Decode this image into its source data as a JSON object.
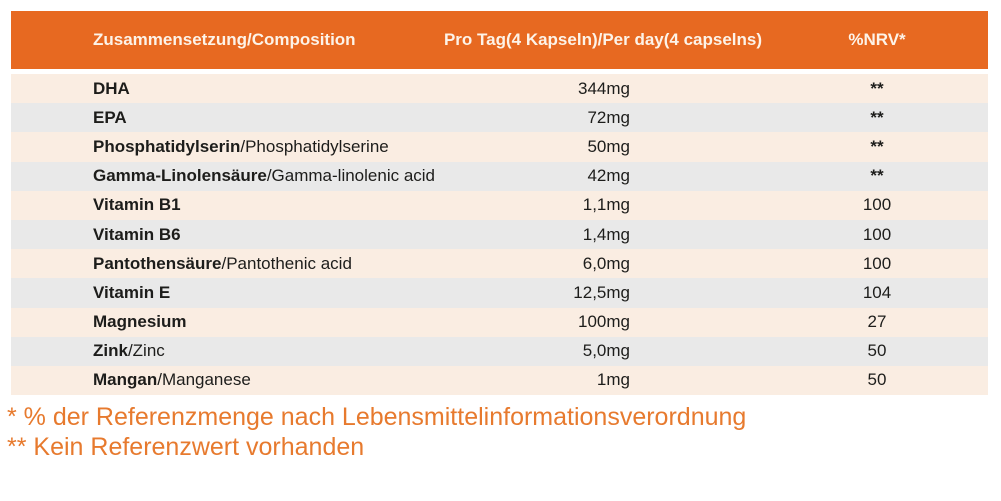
{
  "table": {
    "header": {
      "col1": "Zusammensetzung/Composition",
      "col2": "Pro Tag(4 Kapseln)/Per day(4 capselns)",
      "col3": "%NRV*"
    },
    "rows": [
      {
        "name_de": "DHA",
        "name_en": "",
        "amount": "344mg",
        "nrv": "**"
      },
      {
        "name_de": "EPA",
        "name_en": "",
        "amount": "72mg",
        "nrv": "**"
      },
      {
        "name_de": "Phosphatidylserin",
        "name_en": "/Phosphatidylserine",
        "amount": "50mg",
        "nrv": "**"
      },
      {
        "name_de": "Gamma-Linolensäure",
        "name_en": "/Gamma-linolenic acid",
        "amount": "42mg",
        "nrv": "**"
      },
      {
        "name_de": "Vitamin B1",
        "name_en": "",
        "amount": "1,1mg",
        "nrv": "100"
      },
      {
        "name_de": "Vitamin B6",
        "name_en": "",
        "amount": "1,4mg",
        "nrv": "100"
      },
      {
        "name_de": "Pantothensäure",
        "name_en": "/Pantothenic acid",
        "amount": "6,0mg",
        "nrv": "100"
      },
      {
        "name_de": "Vitamin E",
        "name_en": "",
        "amount": "12,5mg",
        "nrv": "104"
      },
      {
        "name_de": "Magnesium",
        "name_en": "",
        "amount": "100mg",
        "nrv": "27"
      },
      {
        "name_de": "Zink",
        "name_en": "/Zinc",
        "amount": "5,0mg",
        "nrv": "50"
      },
      {
        "name_de": "Mangan",
        "name_en": "/Manganese",
        "amount": "1mg",
        "nrv": "50"
      }
    ]
  },
  "footnotes": {
    "line1": "* % der Referenzmenge nach Lebensmittelinformationsverordnung",
    "line2": "** Kein Referenzwert vorhanden"
  },
  "colors": {
    "header_bg": "#E76921",
    "header_text": "#FDF3E8",
    "row_odd_bg": "#FAEDE2",
    "row_even_bg": "#E9E9E9",
    "body_text": "#1D1D1B",
    "footnote_text": "#E77A2E"
  }
}
